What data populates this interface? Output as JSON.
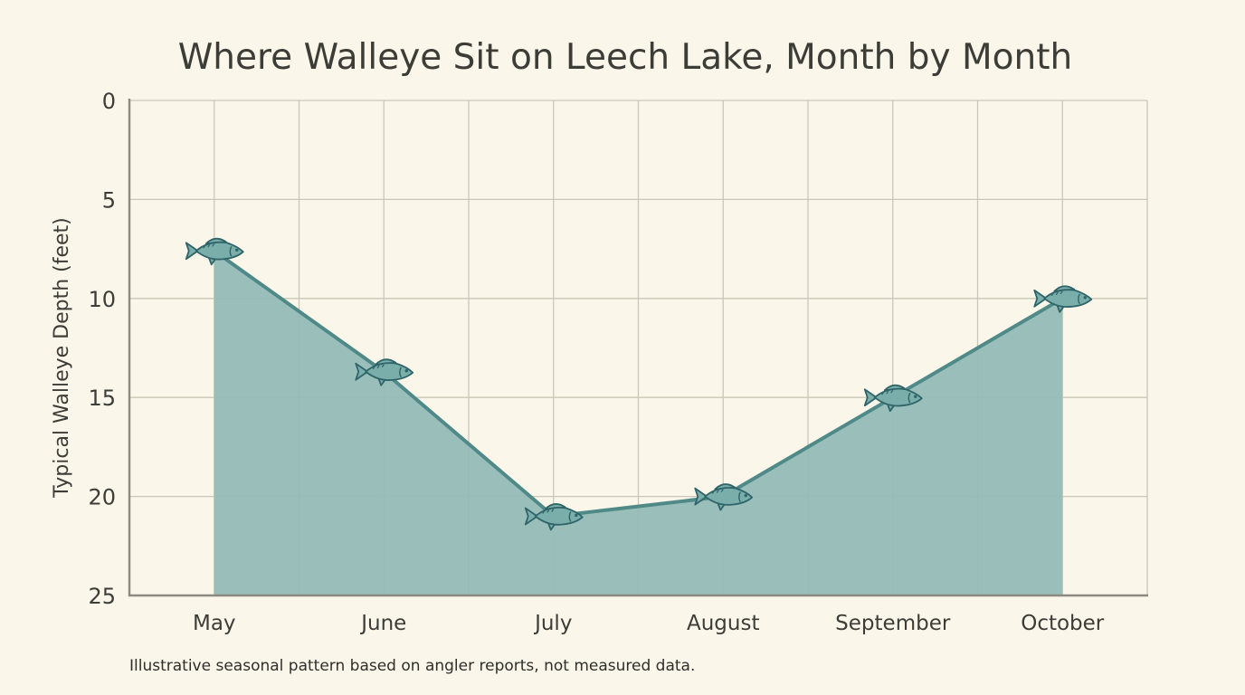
{
  "chart_data": {
    "type": "area",
    "title": "Where Walleye Sit on Leech Lake, Month by Month",
    "xlabel": "",
    "ylabel": "Typical Walleye Depth (feet)",
    "categories": [
      "May",
      "June",
      "July",
      "August",
      "September",
      "October"
    ],
    "series": [
      {
        "values": [
          7.6,
          13.7,
          21.0,
          20.0,
          15.0,
          10.0
        ]
      }
    ],
    "ylim": [
      0,
      25
    ],
    "y_inverted": true,
    "y_ticks": [
      0,
      5,
      10,
      15,
      20,
      25
    ],
    "grid": true,
    "marker": "fish-icon",
    "colors": {
      "fill": "#95bcb8",
      "line": "#4f8a88",
      "marker_stroke": "#2f6468",
      "background": "#fbf6ea"
    },
    "annotation": "Illustrative seasonal pattern based on angler reports, not measured data."
  }
}
